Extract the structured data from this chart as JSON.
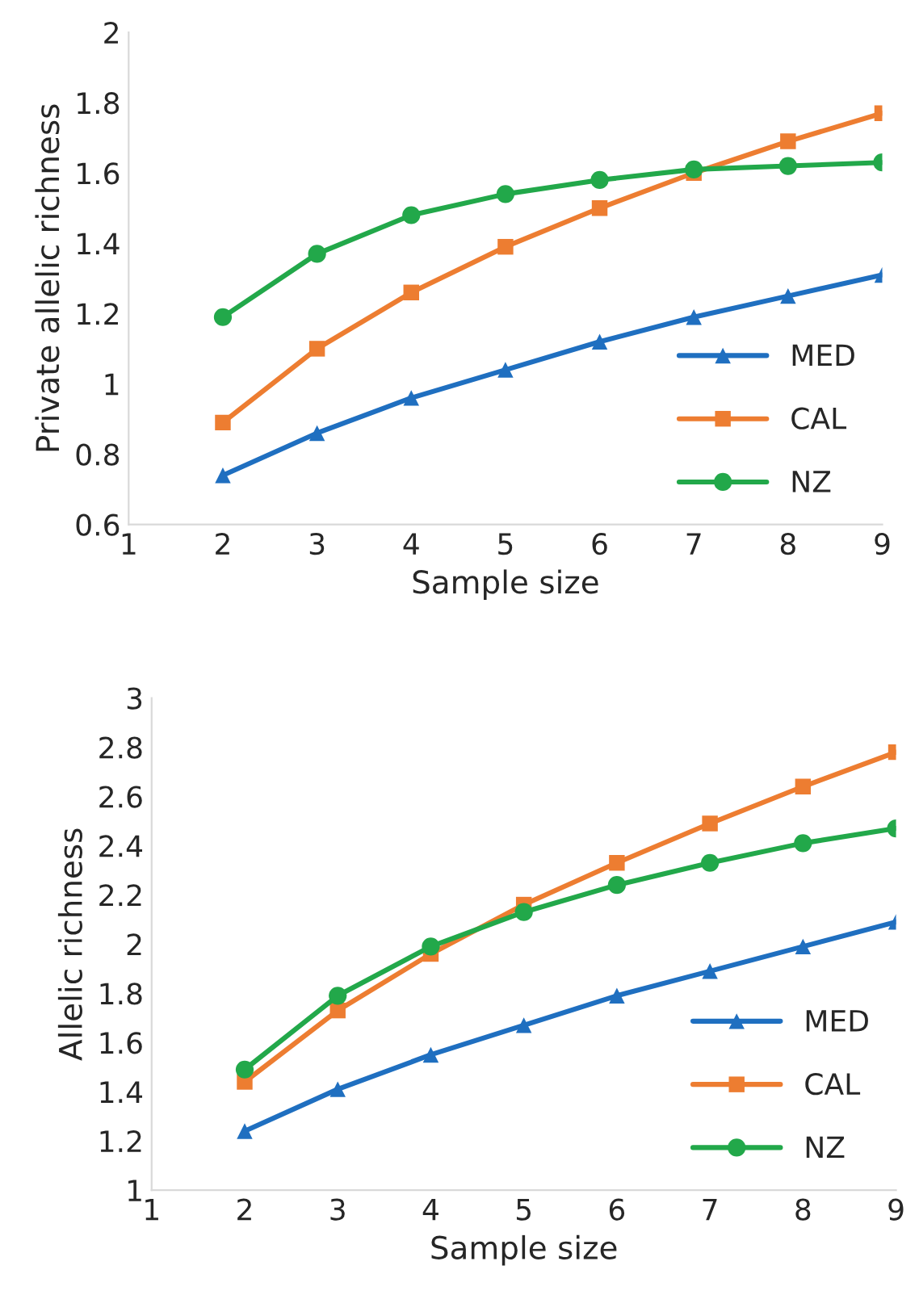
{
  "chart_data": [
    {
      "type": "line",
      "xlabel": "Sample size",
      "ylabel": "Private allelic richness",
      "x": [
        2,
        3,
        4,
        5,
        6,
        7,
        8,
        9
      ],
      "xlim": [
        1,
        9
      ],
      "xticks": [
        1,
        2,
        3,
        4,
        5,
        6,
        7,
        8,
        9
      ],
      "ylim": [
        0.6,
        2
      ],
      "yticks": [
        0.6,
        0.8,
        1,
        1.2,
        1.4,
        1.6,
        1.8,
        2
      ],
      "grid": false,
      "legend": "bottom right",
      "line_style": "solid",
      "series": [
        {
          "name": "MED",
          "color": "#1f6fc0",
          "marker": "triangle",
          "values": [
            0.74,
            0.86,
            0.96,
            1.04,
            1.12,
            1.19,
            1.25,
            1.31
          ]
        },
        {
          "name": "CAL",
          "color": "#ed7d31",
          "marker": "square",
          "values": [
            0.89,
            1.1,
            1.26,
            1.39,
            1.5,
            1.6,
            1.69,
            1.77
          ]
        },
        {
          "name": "NZ",
          "color": "#22a84a",
          "marker": "circle",
          "values": [
            1.19,
            1.37,
            1.48,
            1.54,
            1.58,
            1.61,
            1.62,
            1.63
          ]
        }
      ]
    },
    {
      "type": "line",
      "xlabel": "Sample size",
      "ylabel": "Allelic richness",
      "x": [
        2,
        3,
        4,
        5,
        6,
        7,
        8,
        9
      ],
      "xlim": [
        1,
        9
      ],
      "xticks": [
        1,
        2,
        3,
        4,
        5,
        6,
        7,
        8,
        9
      ],
      "ylim": [
        1,
        3
      ],
      "yticks": [
        1,
        1.2,
        1.4,
        1.6,
        1.8,
        2,
        2.2,
        2.4,
        2.6,
        2.8,
        3
      ],
      "grid": false,
      "legend": "bottom right",
      "line_style": "solid",
      "series": [
        {
          "name": "MED",
          "color": "#1f6fc0",
          "marker": "triangle",
          "values": [
            1.24,
            1.41,
            1.55,
            1.67,
            1.79,
            1.89,
            1.99,
            2.09
          ]
        },
        {
          "name": "CAL",
          "color": "#ed7d31",
          "marker": "square",
          "values": [
            1.44,
            1.73,
            1.96,
            2.16,
            2.33,
            2.49,
            2.64,
            2.78
          ]
        },
        {
          "name": "NZ",
          "color": "#22a84a",
          "marker": "circle",
          "values": [
            1.49,
            1.79,
            1.99,
            2.13,
            2.24,
            2.33,
            2.41,
            2.47
          ]
        }
      ]
    }
  ]
}
